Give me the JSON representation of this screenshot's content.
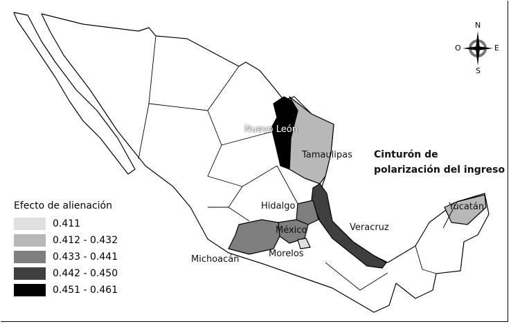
{
  "legend": {
    "title": "Efecto de alienación",
    "items": [
      {
        "label": "0.411",
        "color": "#e0e0e0"
      },
      {
        "label": "0.412 - 0.432",
        "color": "#b8b8b8"
      },
      {
        "label": "0.433 - 0.441",
        "color": "#7f7f7f"
      },
      {
        "label": "0.442 - 0.450",
        "color": "#3f3f3f"
      },
      {
        "label": "0.451 - 0.461",
        "color": "#000000"
      }
    ]
  },
  "annotation": {
    "line1": "Cinturón de",
    "line2": "polarización del ingreso"
  },
  "states": {
    "nuevo_leon": "Nuevo León",
    "tamaulipas": "Tamaulipas",
    "hidalgo": "Hidalgo",
    "mexico": "México",
    "veracruz": "Veracruz",
    "yucatan": "Yucatán",
    "michoacan": "Michoacán",
    "morelos": "Morelos"
  },
  "compass": {
    "n": "N",
    "s": "S",
    "e": "E",
    "w": "O",
    "icon": "compass-rose-icon"
  }
}
